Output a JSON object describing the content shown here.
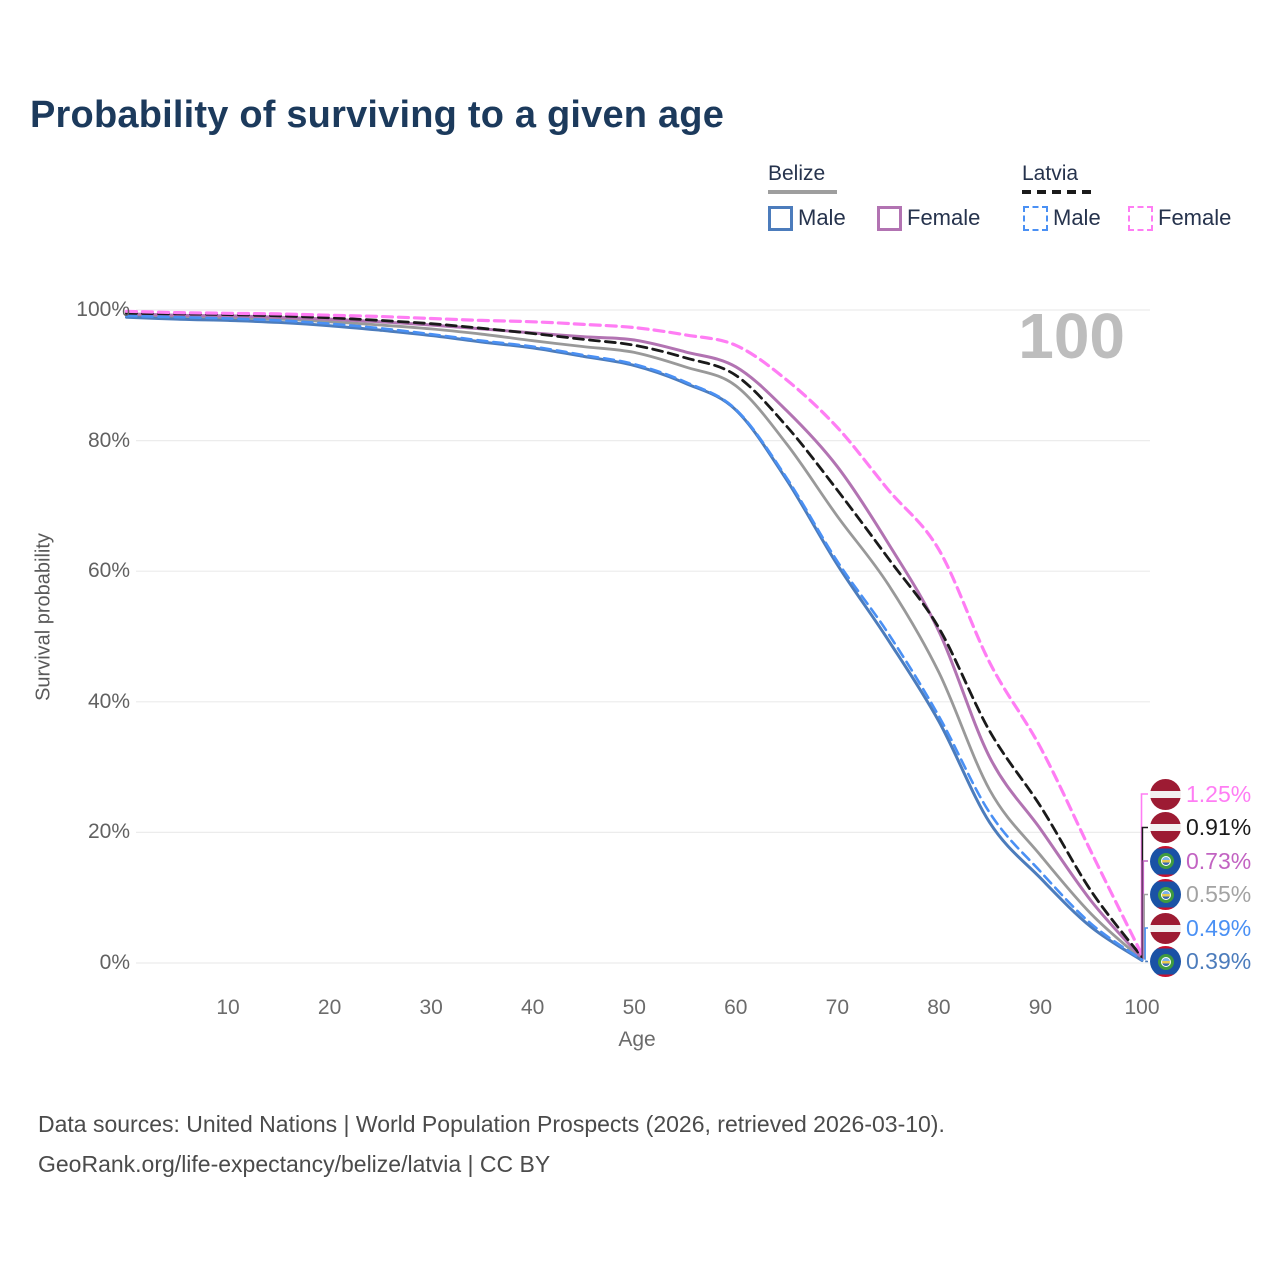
{
  "page": {
    "title": "Probability of surviving to a given age",
    "watermark": "100"
  },
  "legend": {
    "groups": [
      {
        "label": "Belize",
        "line_style": "solid",
        "line_color": "#9e9e9e",
        "items": [
          {
            "label": "Male",
            "color": "#4c7cbc",
            "box_style": "solid"
          },
          {
            "label": "Female",
            "color": "#b273b2",
            "box_style": "solid"
          }
        ]
      },
      {
        "label": "Latvia",
        "line_style": "dashed",
        "line_color": "#1a1a1a",
        "items": [
          {
            "label": "Male",
            "color": "#4a90f4",
            "box_style": "dashed"
          },
          {
            "label": "Female",
            "color": "#ff7df4",
            "box_style": "dashed"
          }
        ]
      }
    ]
  },
  "end_labels": [
    {
      "value": "1.25%",
      "color": "#ff7df4",
      "flag": "latvia",
      "series": "Latvia Female"
    },
    {
      "value": "0.91%",
      "color": "#1a1a1a",
      "flag": "latvia",
      "series": "Latvia"
    },
    {
      "value": "0.73%",
      "color": "#c263c2",
      "flag": "belize",
      "series": "Belize Female"
    },
    {
      "value": "0.55%",
      "color": "#a3a3a3",
      "flag": "belize",
      "series": "Belize"
    },
    {
      "value": "0.49%",
      "color": "#4a90f4",
      "flag": "latvia",
      "series": "Latvia Male"
    },
    {
      "value": "0.39%",
      "color": "#4c7cbc",
      "flag": "belize",
      "series": "Belize Male"
    }
  ],
  "footer": {
    "line1": "Data sources: United Nations | World Population Prospects (2026, retrieved 2026-03-10).",
    "line2": "GeoRank.org/life-expectancy/belize/latvia | CC BY"
  },
  "chart_data": {
    "type": "line",
    "title": "Probability of surviving to a given age",
    "xlabel": "Age",
    "ylabel": "Survival probability",
    "xlim": [
      0,
      100
    ],
    "ylim": [
      0,
      100
    ],
    "grid": "horizontal",
    "legend_position": "top-right",
    "xticks": [
      10,
      20,
      30,
      40,
      50,
      60,
      70,
      80,
      90,
      100
    ],
    "ytick_values": [
      0,
      20,
      40,
      60,
      80,
      100
    ],
    "ytick_labels": [
      "0%",
      "20%",
      "40%",
      "60%",
      "80%",
      "100%"
    ],
    "x": [
      0,
      5,
      10,
      15,
      20,
      25,
      30,
      35,
      40,
      45,
      50,
      55,
      60,
      65,
      70,
      75,
      80,
      85,
      90,
      95,
      100
    ],
    "series": [
      {
        "name": "Belize",
        "country": "Belize",
        "group": "all",
        "color": "#999999",
        "dash": "solid",
        "width": 2.8,
        "end_label": "0.55%",
        "values": [
          99.2,
          99.0,
          98.8,
          98.6,
          98.2,
          97.7,
          97.1,
          96.3,
          95.3,
          94.4,
          93.5,
          91.3,
          88.4,
          79.5,
          68.4,
          58.0,
          44.5,
          26.5,
          16.5,
          7.5,
          0.55
        ]
      },
      {
        "name": "Belize Female",
        "country": "Belize",
        "group": "female",
        "color": "#b273b2",
        "dash": "solid",
        "width": 3,
        "end_label": "0.73%",
        "values": [
          99.4,
          99.2,
          99.1,
          98.9,
          98.6,
          98.2,
          97.7,
          97.1,
          96.5,
          95.9,
          95.4,
          93.6,
          91.3,
          84.6,
          76.0,
          64.3,
          50.8,
          31.5,
          20.5,
          9.5,
          0.73
        ]
      },
      {
        "name": "Belize Male",
        "country": "Belize",
        "group": "male",
        "color": "#4c7cbc",
        "dash": "solid",
        "width": 3,
        "end_label": "0.39%",
        "values": [
          98.9,
          98.6,
          98.4,
          98.1,
          97.6,
          96.9,
          96.1,
          95.1,
          94.2,
          92.9,
          91.5,
          88.8,
          84.7,
          74.0,
          61.0,
          49.5,
          37.0,
          21.5,
          13.0,
          5.5,
          0.39
        ]
      },
      {
        "name": "Latvia",
        "country": "Latvia",
        "group": "all",
        "color": "#1a1a1a",
        "dash": "dashed",
        "width": 2.8,
        "end_label": "0.91%",
        "values": [
          99.5,
          99.4,
          99.3,
          99.1,
          98.8,
          98.4,
          97.9,
          97.2,
          96.4,
          95.5,
          94.6,
          92.7,
          90.0,
          82.2,
          72.4,
          62.0,
          51.3,
          35.5,
          24.0,
          11.0,
          0.91
        ]
      },
      {
        "name": "Latvia Male",
        "country": "Latvia",
        "group": "male",
        "color": "#4a90f4",
        "dash": "dashed",
        "width": 2.6,
        "end_label": "0.49%",
        "values": [
          99.1,
          98.9,
          98.7,
          98.4,
          97.9,
          97.2,
          96.3,
          95.3,
          94.4,
          93.1,
          91.7,
          89.0,
          84.8,
          74.3,
          61.5,
          50.5,
          37.8,
          23.0,
          14.0,
          6.0,
          0.49
        ]
      },
      {
        "name": "Latvia Female",
        "country": "Latvia",
        "group": "female",
        "color": "#ff7df4",
        "dash": "dashed",
        "width": 3.2,
        "end_label": "1.25%",
        "values": [
          99.8,
          99.6,
          99.5,
          99.4,
          99.2,
          99.0,
          98.7,
          98.4,
          98.2,
          97.8,
          97.3,
          96.2,
          94.6,
          89.3,
          82.0,
          72.5,
          63.3,
          46.0,
          33.0,
          17.0,
          1.25
        ]
      }
    ]
  }
}
